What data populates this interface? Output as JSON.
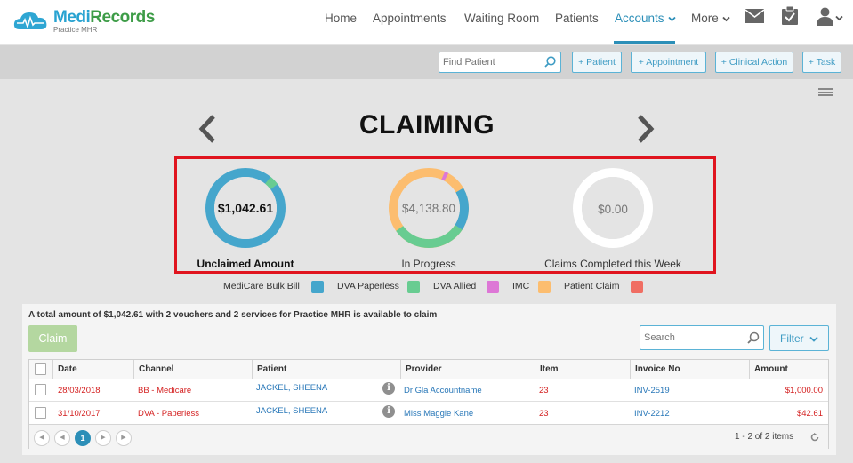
{
  "app": {
    "logo_name_part1": "Medi",
    "logo_name_part2": "Records",
    "logo_subtitle": "Practice MHR"
  },
  "nav": {
    "items": [
      {
        "label": "Home"
      },
      {
        "label": "Appointments"
      },
      {
        "label": "Waiting Room"
      },
      {
        "label": "Patients"
      },
      {
        "label": "Accounts"
      },
      {
        "label": "More"
      }
    ],
    "active_item": "Accounts",
    "icons": [
      "envelope-icon",
      "clipboard-check-icon",
      "user-icon"
    ]
  },
  "toolbar": {
    "find_patient_placeholder": "Find Patient",
    "buttons": [
      {
        "label": "+ Patient"
      },
      {
        "label": "+ Appointment"
      },
      {
        "label": "+ Clinical Action"
      },
      {
        "label": "+ Task"
      }
    ]
  },
  "page": {
    "title": "CLAIMING"
  },
  "summary_cards": [
    {
      "value": "$1,042.61",
      "label": "Unclaimed Amount"
    },
    {
      "value": "$4,138.80",
      "label": "In Progress"
    },
    {
      "value": "$0.00",
      "label": "Claims Completed this Week"
    }
  ],
  "legend": [
    {
      "label": "MediCare Bulk Bill",
      "color": "#45a6cc"
    },
    {
      "label": "DVA Paperless",
      "color": "#68cc91"
    },
    {
      "label": "DVA Allied",
      "color": "#dd77d6"
    },
    {
      "label": "IMC",
      "color": "#fcbd6f"
    },
    {
      "label": "Patient Claim",
      "color": "#f06e63"
    }
  ],
  "claims": {
    "summary_text": "A total amount of $1,042.61 with 2 vouchers and 2 services for Practice MHR is available to claim",
    "claim_button": "Claim",
    "search_placeholder": "Search",
    "filter_button": "Filter",
    "columns": [
      "Date",
      "Channel",
      "Patient",
      "Provider",
      "Item",
      "Invoice No",
      "Amount"
    ],
    "rows": [
      {
        "date": "28/03/2018",
        "channel": "BB - Medicare",
        "patient": "JACKEL, SHEENA",
        "provider": "Dr Gla Accountname",
        "item": "23",
        "invoice": "INV-2519",
        "amount": "$1,000.00"
      },
      {
        "date": "31/10/2017",
        "channel": "DVA - Paperless",
        "patient": "JACKEL, SHEENA",
        "provider": "Miss Maggie Kane",
        "item": "23",
        "invoice": "INV-2212",
        "amount": "$42.61"
      }
    ],
    "pagination": {
      "current_page": "1",
      "info": "1 - 2 of 2 items"
    }
  }
}
